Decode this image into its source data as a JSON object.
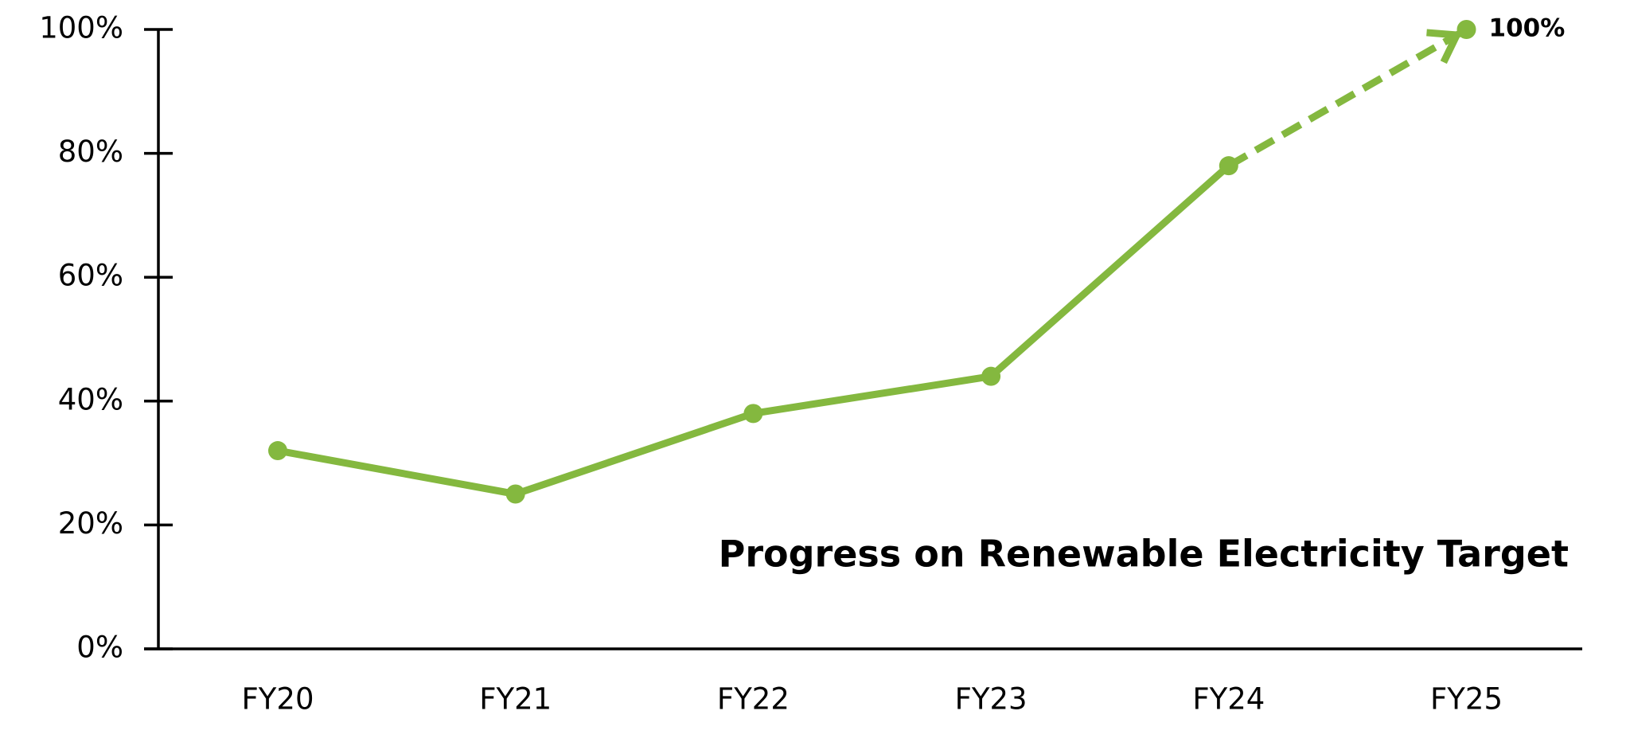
{
  "chart_data": {
    "type": "line",
    "title": "Progress on Renewable Electricity Target",
    "categories": [
      "FY20",
      "FY21",
      "FY22",
      "FY23",
      "FY24",
      "FY25"
    ],
    "values": [
      32,
      25,
      38,
      44,
      78,
      100
    ],
    "value_labels": [
      null,
      null,
      null,
      null,
      null,
      "100%"
    ],
    "projected": [
      false,
      false,
      false,
      false,
      false,
      true
    ],
    "color": "#84b83f",
    "ylim": [
      0,
      100
    ],
    "yticks": [
      {
        "value": 0,
        "label": "0%"
      },
      {
        "value": 20,
        "label": "20%"
      },
      {
        "value": 40,
        "label": "40%"
      },
      {
        "value": 60,
        "label": "60%"
      },
      {
        "value": 80,
        "label": "80%"
      },
      {
        "value": 100,
        "label": "100%"
      }
    ],
    "grid": false
  }
}
